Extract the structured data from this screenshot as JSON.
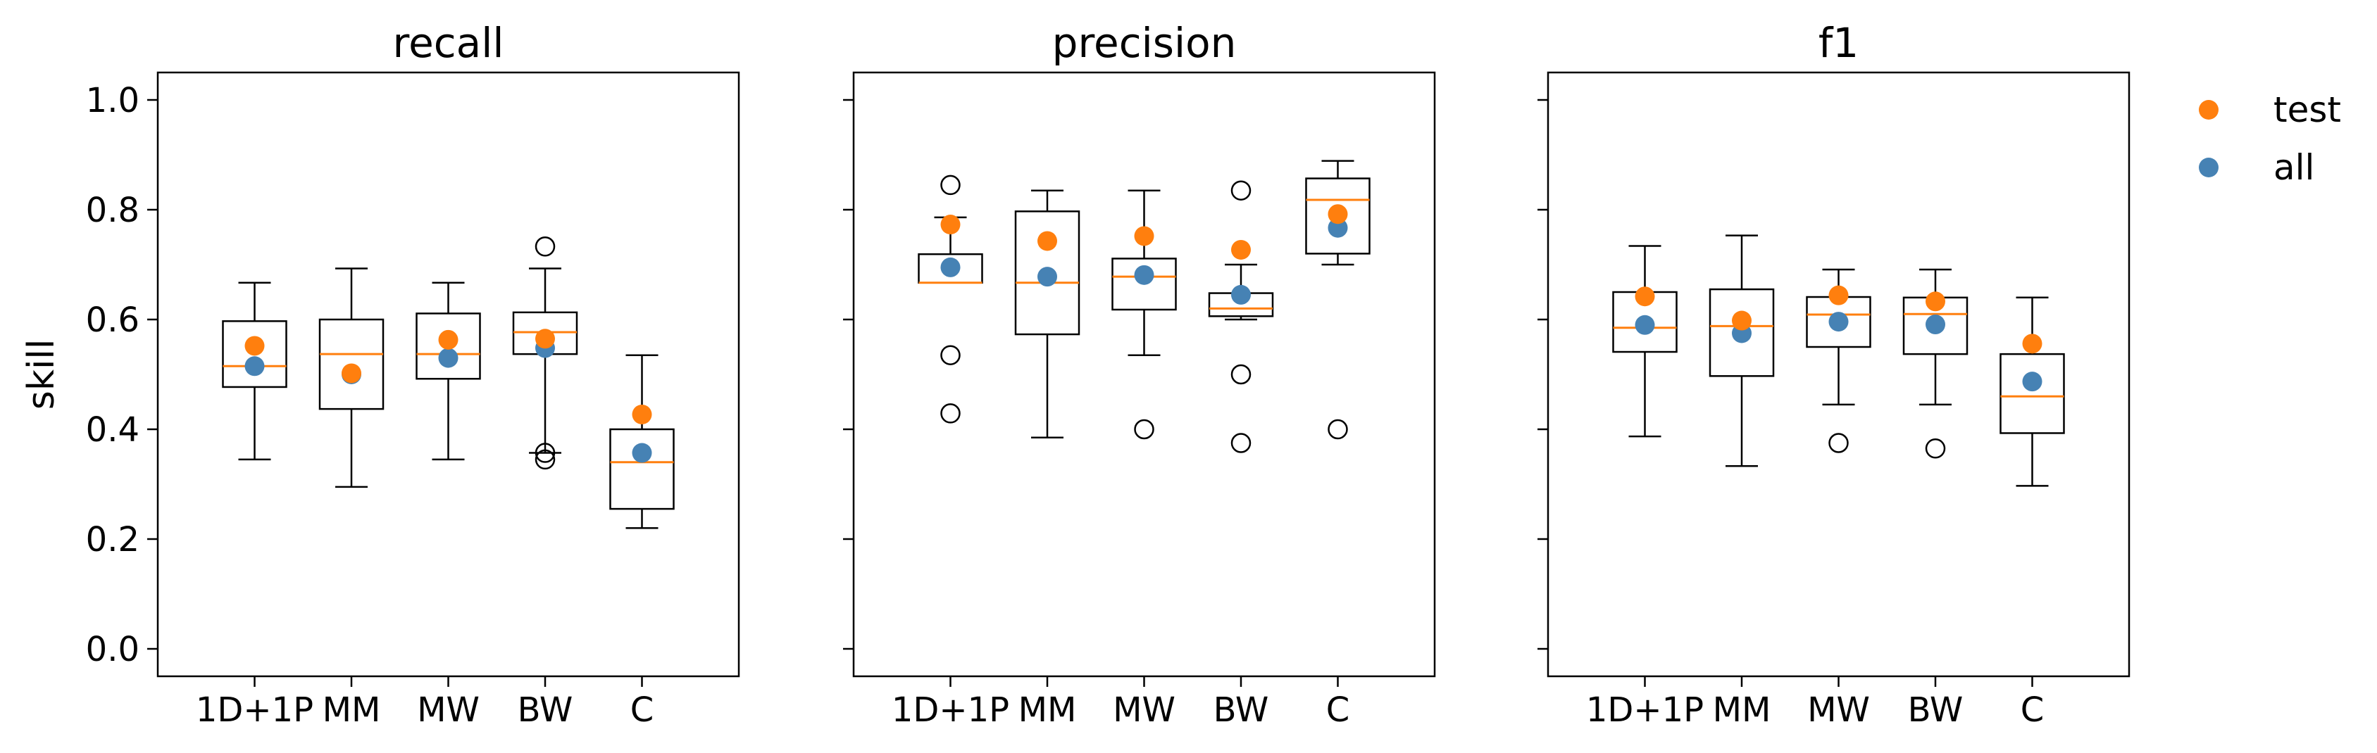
{
  "chart_data": {
    "type": "box",
    "ylabel": "skill",
    "ylim": [
      -0.05,
      1.05
    ],
    "yticks": [
      0.0,
      0.2,
      0.4,
      0.6,
      0.8,
      1.0
    ],
    "ytick_labels": [
      "0.0",
      "0.2",
      "0.4",
      "0.6",
      "0.8",
      "1.0"
    ],
    "categories": [
      "1D+1P",
      "MM",
      "MW",
      "BW",
      "C"
    ],
    "legend": {
      "position": "right",
      "entries": [
        {
          "name": "test",
          "color": "#ff7f0e"
        },
        {
          "name": "all",
          "color": "#4682b4"
        }
      ]
    },
    "colors": {
      "median": "#ff7f0e",
      "test": "#ff7f0e",
      "all": "#4682b4",
      "box": "#000000"
    },
    "panels": [
      {
        "title": "recall",
        "boxes": [
          {
            "category": "1D+1P",
            "whislo": 0.345,
            "q1": 0.477,
            "med": 0.515,
            "q3": 0.597,
            "whishi": 0.667,
            "fliers": [],
            "test": 0.552,
            "all": 0.515
          },
          {
            "category": "MM",
            "whislo": 0.295,
            "q1": 0.437,
            "med": 0.537,
            "q3": 0.6,
            "whishi": 0.693,
            "fliers": [],
            "test": 0.502,
            "all": 0.5
          },
          {
            "category": "MW",
            "whislo": 0.345,
            "q1": 0.492,
            "med": 0.537,
            "q3": 0.611,
            "whishi": 0.667,
            "fliers": [],
            "test": 0.563,
            "all": 0.53
          },
          {
            "category": "BW",
            "whislo": 0.357,
            "q1": 0.537,
            "med": 0.577,
            "q3": 0.613,
            "whishi": 0.693,
            "fliers": [
              0.733,
              0.357,
              0.345
            ],
            "test": 0.565,
            "all": 0.548
          },
          {
            "category": "C",
            "whislo": 0.22,
            "q1": 0.255,
            "med": 0.34,
            "q3": 0.4,
            "whishi": 0.535,
            "fliers": [],
            "test": 0.427,
            "all": 0.357
          }
        ]
      },
      {
        "title": "precision",
        "boxes": [
          {
            "category": "1D+1P",
            "whislo": 0.667,
            "q1": 0.667,
            "med": 0.667,
            "q3": 0.719,
            "whishi": 0.786,
            "fliers": [
              0.845,
              0.535,
              0.429
            ],
            "test": 0.773,
            "all": 0.695
          },
          {
            "category": "MM",
            "whislo": 0.385,
            "q1": 0.573,
            "med": 0.667,
            "q3": 0.797,
            "whishi": 0.835,
            "fliers": [],
            "test": 0.743,
            "all": 0.678
          },
          {
            "category": "MW",
            "whislo": 0.535,
            "q1": 0.618,
            "med": 0.678,
            "q3": 0.711,
            "whishi": 0.835,
            "fliers": [
              0.4
            ],
            "test": 0.752,
            "all": 0.681
          },
          {
            "category": "BW",
            "whislo": 0.6,
            "q1": 0.606,
            "med": 0.62,
            "q3": 0.648,
            "whishi": 0.7,
            "fliers": [
              0.835,
              0.5,
              0.375
            ],
            "test": 0.727,
            "all": 0.645
          },
          {
            "category": "C",
            "whislo": 0.7,
            "q1": 0.72,
            "med": 0.818,
            "q3": 0.857,
            "whishi": 0.889,
            "fliers": [
              0.4
            ],
            "test": 0.792,
            "all": 0.767
          }
        ]
      },
      {
        "title": "f1",
        "boxes": [
          {
            "category": "1D+1P",
            "whislo": 0.387,
            "q1": 0.541,
            "med": 0.585,
            "q3": 0.65,
            "whishi": 0.734,
            "fliers": [],
            "test": 0.642,
            "all": 0.59
          },
          {
            "category": "MM",
            "whislo": 0.333,
            "q1": 0.497,
            "med": 0.588,
            "q3": 0.655,
            "whishi": 0.753,
            "fliers": [],
            "test": 0.598,
            "all": 0.575
          },
          {
            "category": "MW",
            "whislo": 0.445,
            "q1": 0.55,
            "med": 0.609,
            "q3": 0.641,
            "whishi": 0.691,
            "fliers": [
              0.375
            ],
            "test": 0.644,
            "all": 0.596
          },
          {
            "category": "BW",
            "whislo": 0.445,
            "q1": 0.537,
            "med": 0.61,
            "q3": 0.64,
            "whishi": 0.691,
            "fliers": [
              0.365
            ],
            "test": 0.633,
            "all": 0.591
          },
          {
            "category": "C",
            "whislo": 0.297,
            "q1": 0.393,
            "med": 0.46,
            "q3": 0.537,
            "whishi": 0.64,
            "fliers": [],
            "test": 0.556,
            "all": 0.487
          }
        ]
      }
    ]
  }
}
